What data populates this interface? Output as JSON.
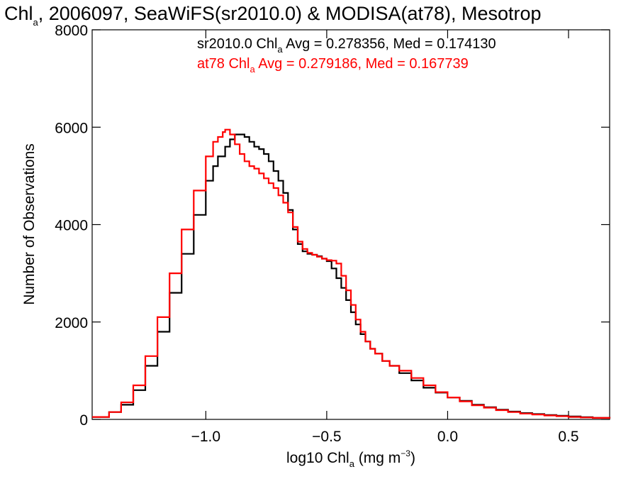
{
  "title": {
    "prefix": "Chl",
    "sub": "a",
    "rest": ", 2006097, SeaWiFS(sr2010.0) & MODISA(at78), Mesotrop"
  },
  "chart_data": {
    "type": "line",
    "xlim": [
      -1.47,
      0.67
    ],
    "ylim": [
      0,
      8000
    ],
    "grid": false,
    "x_ticks": [
      -1.0,
      -0.5,
      0.0,
      0.5
    ],
    "x_tick_labels": [
      "−1.0",
      "−0.5",
      "0.0",
      "0.5"
    ],
    "y_ticks": [
      0,
      2000,
      4000,
      6000,
      8000
    ],
    "y_tick_labels": [
      "0",
      "2000",
      "4000",
      "6000",
      "8000"
    ],
    "xlabel": {
      "pre": "log10 Chl",
      "sub": "a",
      "mid": " (mg m",
      "sup": "−3",
      "post": ")"
    },
    "ylabel": "Number of Observations",
    "legend_position": "top",
    "legend": [
      {
        "pre": "sr2010.0 Chl",
        "sub": "a",
        "post": " Avg = 0.278356, Med = 0.174130",
        "color": "#000000"
      },
      {
        "pre": "at78 Chl",
        "sub": "a",
        "post": " Avg = 0.279186, Med = 0.167739",
        "color": "#ff0000"
      }
    ],
    "series": [
      {
        "color": "#000000",
        "x": [
          -1.47,
          -1.4,
          -1.35,
          -1.3,
          -1.25,
          -1.2,
          -1.15,
          -1.1,
          -1.05,
          -1.0,
          -0.97,
          -0.95,
          -0.92,
          -0.9,
          -0.88,
          -0.86,
          -0.84,
          -0.82,
          -0.8,
          -0.78,
          -0.76,
          -0.74,
          -0.72,
          -0.7,
          -0.68,
          -0.66,
          -0.64,
          -0.62,
          -0.6,
          -0.58,
          -0.56,
          -0.54,
          -0.52,
          -0.5,
          -0.48,
          -0.46,
          -0.44,
          -0.42,
          -0.4,
          -0.38,
          -0.36,
          -0.34,
          -0.32,
          -0.3,
          -0.27,
          -0.24,
          -0.2,
          -0.15,
          -0.1,
          -0.05,
          0.0,
          0.05,
          0.1,
          0.15,
          0.2,
          0.25,
          0.3,
          0.35,
          0.4,
          0.45,
          0.5,
          0.55,
          0.6,
          0.67
        ],
        "y": [
          50,
          150,
          300,
          600,
          1100,
          1800,
          2600,
          3400,
          4200,
          4900,
          5200,
          5400,
          5600,
          5750,
          5850,
          5850,
          5800,
          5700,
          5600,
          5550,
          5450,
          5300,
          5100,
          4900,
          4650,
          4300,
          3900,
          3600,
          3450,
          3400,
          3380,
          3350,
          3300,
          3250,
          3100,
          2900,
          2700,
          2450,
          2200,
          1950,
          1750,
          1600,
          1450,
          1350,
          1200,
          1100,
          950,
          800,
          650,
          550,
          450,
          380,
          300,
          250,
          200,
          160,
          130,
          110,
          90,
          75,
          60,
          45,
          30,
          20
        ]
      },
      {
        "color": "#ff0000",
        "x": [
          -1.47,
          -1.4,
          -1.35,
          -1.3,
          -1.25,
          -1.2,
          -1.15,
          -1.1,
          -1.05,
          -1.0,
          -0.97,
          -0.95,
          -0.93,
          -0.92,
          -0.9,
          -0.88,
          -0.86,
          -0.84,
          -0.82,
          -0.8,
          -0.78,
          -0.76,
          -0.74,
          -0.72,
          -0.7,
          -0.68,
          -0.66,
          -0.64,
          -0.62,
          -0.6,
          -0.58,
          -0.56,
          -0.54,
          -0.52,
          -0.5,
          -0.48,
          -0.46,
          -0.44,
          -0.42,
          -0.4,
          -0.38,
          -0.36,
          -0.34,
          -0.32,
          -0.3,
          -0.27,
          -0.24,
          -0.2,
          -0.15,
          -0.1,
          -0.05,
          0.0,
          0.05,
          0.1,
          0.15,
          0.2,
          0.25,
          0.3,
          0.35,
          0.4,
          0.45,
          0.5,
          0.55,
          0.6,
          0.67
        ],
        "y": [
          50,
          150,
          350,
          700,
          1300,
          2100,
          3000,
          3900,
          4700,
          5400,
          5700,
          5800,
          5900,
          5950,
          5850,
          5650,
          5450,
          5300,
          5200,
          5150,
          5050,
          4950,
          4850,
          4750,
          4600,
          4450,
          4250,
          3950,
          3650,
          3500,
          3420,
          3380,
          3340,
          3300,
          3270,
          3260,
          3200,
          2950,
          2650,
          2350,
          2050,
          1800,
          1600,
          1450,
          1350,
          1200,
          1100,
          1000,
          850,
          700,
          560,
          450,
          370,
          290,
          240,
          190,
          150,
          120,
          100,
          80,
          65,
          50,
          40,
          30,
          20
        ]
      }
    ]
  }
}
